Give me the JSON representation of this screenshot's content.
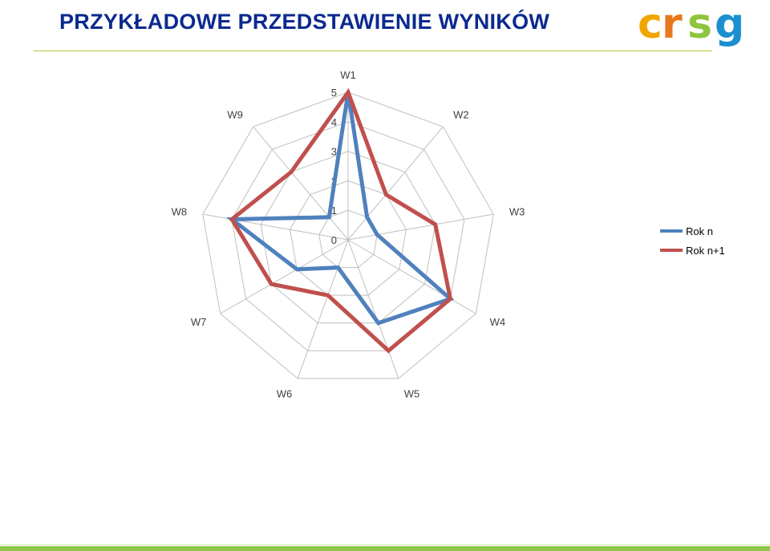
{
  "slide": {
    "title": "PRZYKŁADOWE PRZEDSTAWIENIE WYNIKÓW",
    "logo_text": "crsg",
    "logo_letters": [
      "c",
      "r",
      "s",
      "g"
    ]
  },
  "colors": {
    "title": "#0b2a8f",
    "title_rule": "#a6ce39",
    "footer_rule": "#8fc74a",
    "logo_c": "#f0a500",
    "logo_r": "#e8781e",
    "logo_s": "#8fc43d",
    "logo_g": "#1c8fd0",
    "grid": "#bfbfbf",
    "tick_label": "#404040",
    "category_label": "#404040"
  },
  "chart_data": {
    "type": "radar",
    "title": "",
    "categories": [
      "W1",
      "W2",
      "W3",
      "W4",
      "W5",
      "W6",
      "W7",
      "W8",
      "W9"
    ],
    "scale": {
      "min": 0,
      "max": 5,
      "step": 1
    },
    "tick_labels": [
      "0",
      "1",
      "2",
      "3",
      "4",
      "5"
    ],
    "grid": true,
    "legend": {
      "position": "right"
    },
    "series": [
      {
        "name": "Rok n",
        "color": "#4f81bd",
        "values": [
          5,
          1,
          1,
          4,
          3,
          1,
          2,
          4,
          1
        ]
      },
      {
        "name": "Rok n+1",
        "color": "#c0504d",
        "values": [
          5,
          2,
          3,
          4,
          4,
          2,
          3,
          4,
          3
        ]
      }
    ]
  }
}
